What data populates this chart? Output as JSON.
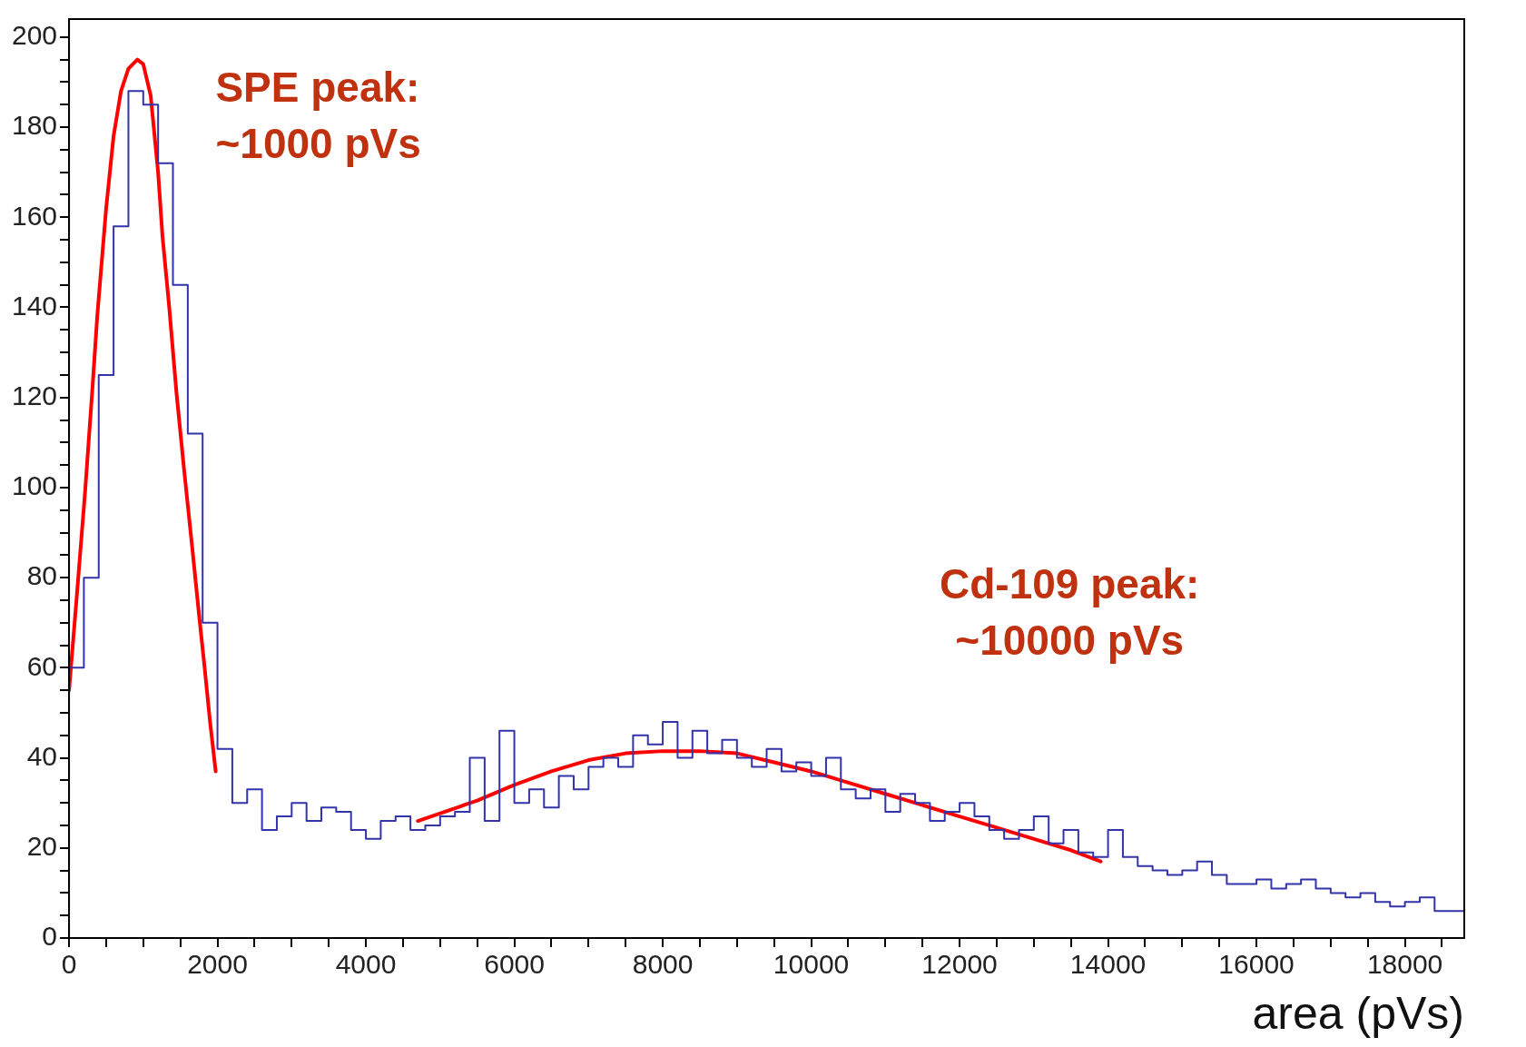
{
  "chart_data": {
    "type": "histogram",
    "xlabel": "area (pVs)",
    "bins": [
      0,
      200,
      400,
      600,
      800,
      1000,
      1200,
      1400,
      1600,
      1800,
      2000,
      2200,
      2400,
      2600,
      2800,
      3000,
      3200,
      3400,
      3600,
      3800,
      4000,
      4200,
      4400,
      4600,
      4800,
      5000,
      5200,
      5400,
      5600,
      5800,
      6000,
      6200,
      6400,
      6600,
      6800,
      7000,
      7200,
      7400,
      7600,
      7800,
      8000,
      8200,
      8400,
      8600,
      8800,
      9000,
      9200,
      9400,
      9600,
      9800,
      10000,
      10200,
      10400,
      10600,
      10800,
      11000,
      11200,
      11400,
      11600,
      11800,
      12000,
      12200,
      12400,
      12600,
      12800,
      13000,
      13200,
      13400,
      13600,
      13800,
      14000,
      14200,
      14400,
      14600,
      14800,
      15000,
      15200,
      15400,
      15600,
      15800,
      16000,
      16200,
      16400,
      16600,
      16800,
      17000,
      17200,
      17400,
      17600,
      17800,
      18000,
      18200,
      18400,
      18600,
      18800
    ],
    "values": [
      60,
      80,
      125,
      158,
      188,
      185,
      172,
      145,
      112,
      70,
      42,
      30,
      33,
      24,
      27,
      30,
      26,
      29,
      28,
      24,
      22,
      26,
      27,
      24,
      25,
      27,
      28,
      40,
      26,
      46,
      30,
      33,
      29,
      36,
      33,
      38,
      40,
      38,
      45,
      43,
      48,
      40,
      46,
      41,
      44,
      40,
      38,
      42,
      37,
      39,
      36,
      40,
      33,
      31,
      33,
      28,
      32,
      30,
      26,
      28,
      30,
      27,
      24,
      22,
      24,
      27,
      21,
      24,
      19,
      18,
      24,
      18,
      16,
      15,
      14,
      15,
      17,
      14,
      12,
      12,
      13,
      11,
      12,
      13,
      11,
      10,
      9,
      10,
      8,
      7,
      8,
      9,
      6,
      6
    ],
    "color": "#3333aa",
    "series": [
      {
        "type": "line",
        "color": "#ff0000",
        "x": [
          0,
          100,
          216,
          311,
          380,
          500,
          600,
          700,
          800,
          920,
          1000,
          1100,
          1200,
          1258,
          1350,
          1448,
          1550,
          1664,
          1750,
          1827,
          1900,
          1976
        ],
        "values": [
          55,
          75,
          99,
          121,
          138,
          162,
          178,
          188,
          193,
          195,
          194,
          187,
          170,
          156,
          140,
          121,
          104,
          86,
          72,
          60,
          48,
          37
        ]
      },
      {
        "type": "line",
        "color": "#ff0000",
        "x": [
          4700,
          5500,
          6000,
          6500,
          7000,
          7500,
          8000,
          8500,
          9000,
          9500,
          10000,
          10500,
          11000,
          11500,
          12000,
          12500,
          13000,
          13500,
          13900
        ],
        "values": [
          26,
          30.5,
          34,
          37,
          39.5,
          41,
          41.5,
          41.5,
          41,
          39,
          37,
          34.5,
          32,
          29.5,
          27,
          24.5,
          22,
          19.5,
          17
        ]
      }
    ],
    "annotations": [
      "SPE peak:\n~1000 pVs",
      "Cd-109 peak:\n~10000 pVs"
    ],
    "xlim": [
      0,
      18800
    ],
    "xticks": [
      0,
      {
        "value": 500,
        "label": null
      },
      {
        "value": 1000,
        "label": null
      },
      {
        "value": 1500,
        "label": null
      },
      2000,
      {
        "value": 2500,
        "label": null
      },
      {
        "value": 3000,
        "label": null
      },
      {
        "value": 3500,
        "label": null
      },
      4000,
      {
        "value": 4500,
        "label": null
      },
      {
        "value": 5000,
        "label": null
      },
      {
        "value": 5500,
        "label": null
      },
      6000,
      {
        "value": 6500,
        "label": null
      },
      {
        "value": 7000,
        "label": null
      },
      {
        "value": 7500,
        "label": null
      },
      8000,
      {
        "value": 8500,
        "label": null
      },
      {
        "value": 9000,
        "label": null
      },
      {
        "value": 9500,
        "label": null
      },
      10000,
      {
        "value": 10500,
        "label": null
      },
      {
        "value": 11000,
        "label": null
      },
      {
        "value": 11500,
        "label": null
      },
      12000,
      {
        "value": 12500,
        "label": null
      },
      {
        "value": 13000,
        "label": null
      },
      {
        "value": 13500,
        "label": null
      },
      14000,
      {
        "value": 14500,
        "label": null
      },
      {
        "value": 15000,
        "label": null
      },
      {
        "value": 15500,
        "label": null
      },
      16000,
      {
        "value": 16500,
        "label": null
      },
      {
        "value": 17000,
        "label": null
      },
      {
        "value": 17500,
        "label": null
      },
      18000,
      {
        "value": 18500,
        "label": null
      }
    ],
    "ylim": [
      0,
      204
    ],
    "yticks": [
      0,
      {
        "value": 5,
        "label": null
      },
      {
        "value": 10,
        "label": null
      },
      {
        "value": 15,
        "label": null
      },
      20,
      {
        "value": 25,
        "label": null
      },
      {
        "value": 30,
        "label": null
      },
      {
        "value": 35,
        "label": null
      },
      40,
      {
        "value": 45,
        "label": null
      },
      {
        "value": 50,
        "label": null
      },
      {
        "value": 55,
        "label": null
      },
      60,
      {
        "value": 65,
        "label": null
      },
      {
        "value": 70,
        "label": null
      },
      {
        "value": 75,
        "label": null
      },
      80,
      {
        "value": 85,
        "label": null
      },
      {
        "value": 90,
        "label": null
      },
      {
        "value": 95,
        "label": null
      },
      100,
      {
        "value": 105,
        "label": null
      },
      {
        "value": 110,
        "label": null
      },
      {
        "value": 115,
        "label": null
      },
      120,
      {
        "value": 125,
        "label": null
      },
      {
        "value": 130,
        "label": null
      },
      {
        "value": 135,
        "label": null
      },
      140,
      {
        "value": 145,
        "label": null
      },
      {
        "value": 150,
        "label": null
      },
      {
        "value": 155,
        "label": null
      },
      160,
      {
        "value": 165,
        "label": null
      },
      {
        "value": 170,
        "label": null
      },
      {
        "value": 175,
        "label": null
      },
      180,
      {
        "value": 185,
        "label": null
      },
      {
        "value": 190,
        "label": null
      },
      {
        "value": 195,
        "label": null
      },
      200
    ]
  }
}
